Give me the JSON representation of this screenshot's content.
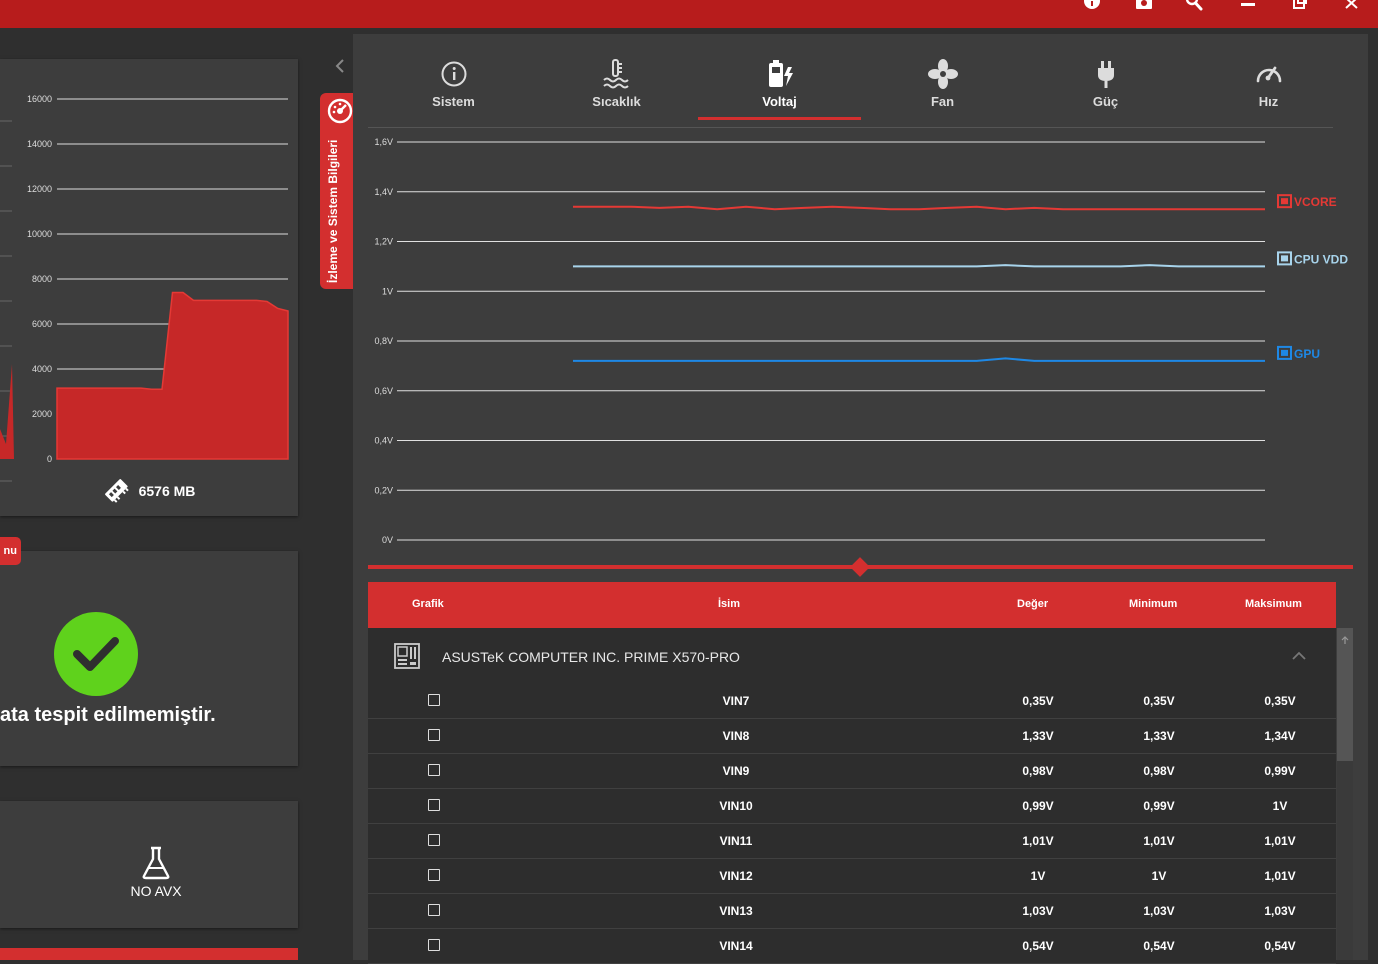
{
  "titlebar": {
    "icons": [
      "info-icon",
      "camera-icon",
      "search-icon",
      "minimize-icon",
      "restore-icon",
      "close-icon"
    ]
  },
  "memory_panel": {
    "total_label": "6576 MB",
    "icon": "memory-icon"
  },
  "menu_tag": {
    "label": "nu"
  },
  "errors_panel": {
    "status_icon": "check-icon",
    "message": "ata tespit edilmemiştir."
  },
  "avx_panel": {
    "icon": "flask-icon",
    "label": "NO AVX"
  },
  "side_tab": {
    "label": "İzleme ve Sistem Bilgileri",
    "icon": "gauge-icon"
  },
  "tabs": [
    {
      "label": "Sistem",
      "icon": "info-circle-icon"
    },
    {
      "label": "Sıcaklık",
      "icon": "thermometer-icon"
    },
    {
      "label": "Voltaj",
      "icon": "battery-bolt-icon",
      "active": true
    },
    {
      "label": "Fan",
      "icon": "fan-icon"
    },
    {
      "label": "Güç",
      "icon": "plug-icon"
    },
    {
      "label": "Hız",
      "icon": "speedometer-icon"
    }
  ],
  "colors": {
    "accent": "#d32f2f",
    "vcore": "#e53935",
    "cpu_vdd": "#a8d4ec",
    "gpu": "#1e88e5"
  },
  "chart_data": [
    {
      "type": "area",
      "name": "memory-usage",
      "ylim": [
        0,
        16000
      ],
      "y_ticks": [
        0,
        2000,
        4000,
        6000,
        8000,
        10000,
        12000,
        14000,
        16000
      ],
      "tick_labels": [
        "0",
        "2000",
        "4000",
        "6000",
        "8000",
        "10000",
        "12000",
        "14000",
        "16000"
      ],
      "values": [
        3150,
        3150,
        3150,
        3150,
        3150,
        3150,
        3150,
        3150,
        3150,
        3100,
        3100,
        7400,
        7400,
        7050,
        7050,
        7050,
        7050,
        7050,
        7050,
        7050,
        7000,
        6700,
        6576
      ]
    },
    {
      "type": "line",
      "name": "voltage",
      "ylim": [
        0,
        1.6
      ],
      "y_ticks": [
        0,
        0.2,
        0.4,
        0.6,
        0.8,
        1.0,
        1.2,
        1.4,
        1.6
      ],
      "tick_labels": [
        "0V",
        "0,2V",
        "0,4V",
        "0,6V",
        "0,8V",
        "1V",
        "1,2V",
        "1,4V",
        "1,6V"
      ],
      "series": [
        {
          "name": "VCORE",
          "values": [
            1.34,
            1.34,
            1.34,
            1.335,
            1.34,
            1.33,
            1.34,
            1.33,
            1.335,
            1.34,
            1.335,
            1.33,
            1.33,
            1.335,
            1.34,
            1.33,
            1.335,
            1.33,
            1.33,
            1.33,
            1.33,
            1.33,
            1.33,
            1.33,
            1.33
          ]
        },
        {
          "name": "CPU VDD",
          "values": [
            1.1,
            1.1,
            1.1,
            1.1,
            1.1,
            1.1,
            1.1,
            1.1,
            1.1,
            1.1,
            1.1,
            1.1,
            1.1,
            1.1,
            1.1,
            1.105,
            1.1,
            1.1,
            1.1,
            1.1,
            1.105,
            1.1,
            1.1,
            1.1,
            1.1
          ]
        },
        {
          "name": "GPU",
          "values": [
            0.72,
            0.72,
            0.72,
            0.72,
            0.72,
            0.72,
            0.72,
            0.72,
            0.72,
            0.72,
            0.72,
            0.72,
            0.72,
            0.72,
            0.72,
            0.73,
            0.72,
            0.72,
            0.72,
            0.72,
            0.72,
            0.72,
            0.72,
            0.72,
            0.72
          ]
        }
      ]
    }
  ],
  "table": {
    "headers": {
      "graph": "Grafik",
      "name": "İsim",
      "value": "Değer",
      "min": "Minimum",
      "max": "Maksimum"
    },
    "device": {
      "name": "ASUSTeK COMPUTER INC. PRIME X570-PRO",
      "icon": "motherboard-icon"
    },
    "rows": [
      {
        "name": "VIN7",
        "value": "0,35V",
        "min": "0,35V",
        "max": "0,35V"
      },
      {
        "name": "VIN8",
        "value": "1,33V",
        "min": "1,33V",
        "max": "1,34V"
      },
      {
        "name": "VIN9",
        "value": "0,98V",
        "min": "0,98V",
        "max": "0,99V"
      },
      {
        "name": "VIN10",
        "value": "0,99V",
        "min": "0,99V",
        "max": "1V"
      },
      {
        "name": "VIN11",
        "value": "1,01V",
        "min": "1,01V",
        "max": "1,01V"
      },
      {
        "name": "VIN12",
        "value": "1V",
        "min": "1V",
        "max": "1,01V"
      },
      {
        "name": "VIN13",
        "value": "1,03V",
        "min": "1,03V",
        "max": "1,03V"
      },
      {
        "name": "VIN14",
        "value": "0,54V",
        "min": "0,54V",
        "max": "0,54V"
      }
    ]
  }
}
